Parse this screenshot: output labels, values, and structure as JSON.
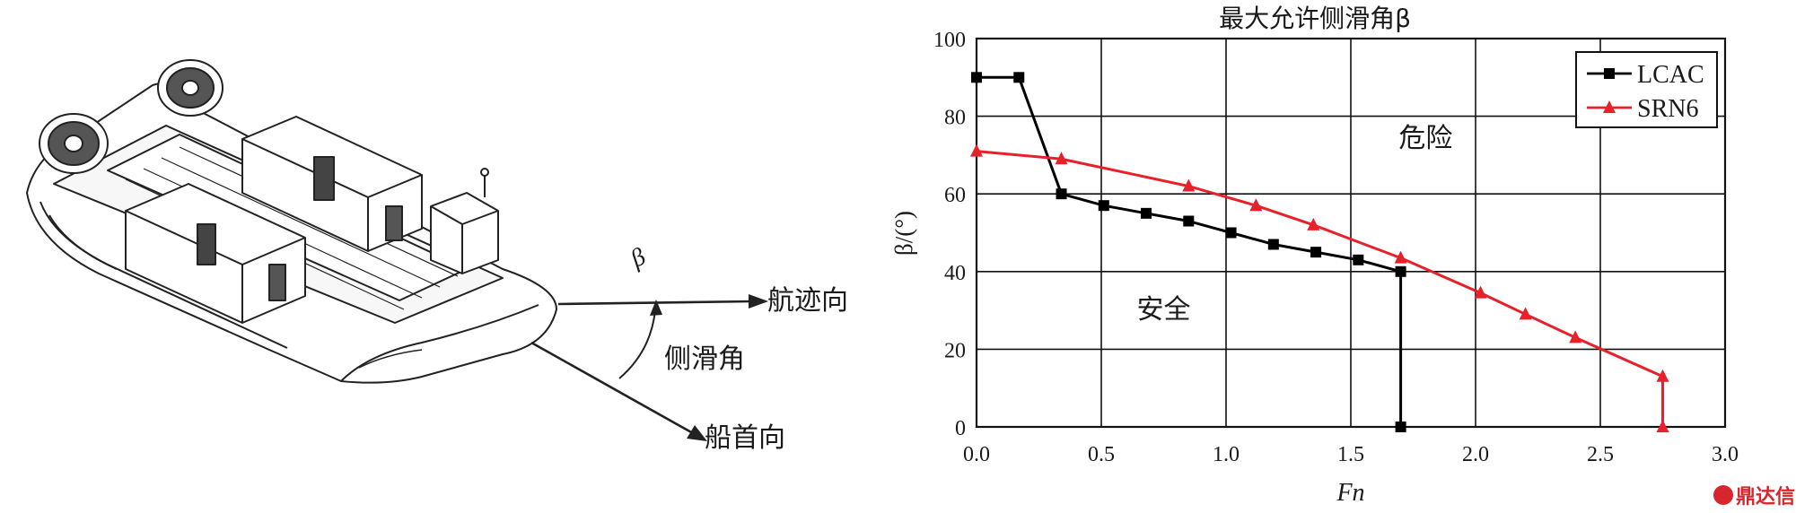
{
  "diagram": {
    "beta_symbol": "β",
    "track_label": "航迹向",
    "sideslip_label": "侧滑角",
    "bow_label": "船首向"
  },
  "chart_data": {
    "type": "line",
    "title": "最大允许侧滑角β",
    "xlabel": "Fn",
    "ylabel": "β/(°)",
    "xlim": [
      0.0,
      3.0
    ],
    "ylim": [
      0,
      100
    ],
    "x_ticks": [
      "0.0",
      "0.5",
      "1.0",
      "1.5",
      "2.0",
      "2.5",
      "3.0"
    ],
    "y_ticks": [
      "0",
      "20",
      "40",
      "60",
      "80",
      "100"
    ],
    "grid": true,
    "legend_position": "top-right",
    "series": [
      {
        "name": "LCAC",
        "color": "#000000",
        "marker": "square",
        "points": [
          [
            0.0,
            90
          ],
          [
            0.17,
            90
          ],
          [
            0.34,
            60
          ],
          [
            0.51,
            57
          ],
          [
            0.68,
            55
          ],
          [
            0.85,
            53
          ],
          [
            1.02,
            50
          ],
          [
            1.19,
            47
          ],
          [
            1.36,
            45
          ],
          [
            1.53,
            43
          ],
          [
            1.7,
            40
          ],
          [
            1.7,
            0
          ]
        ]
      },
      {
        "name": "SRN6",
        "color": "#e8202a",
        "marker": "triangle",
        "points": [
          [
            0.0,
            71
          ],
          [
            0.34,
            69
          ],
          [
            0.85,
            62
          ],
          [
            1.12,
            57
          ],
          [
            1.35,
            52
          ],
          [
            1.7,
            43.5
          ],
          [
            2.02,
            34.5
          ],
          [
            2.2,
            29
          ],
          [
            2.4,
            23
          ],
          [
            2.75,
            13
          ],
          [
            2.75,
            0
          ]
        ]
      }
    ],
    "annotations": [
      {
        "text": "危险",
        "x": 1.8,
        "y": 72
      },
      {
        "text": "安全",
        "x": 0.75,
        "y": 28
      }
    ]
  },
  "watermark": "鼎达信"
}
